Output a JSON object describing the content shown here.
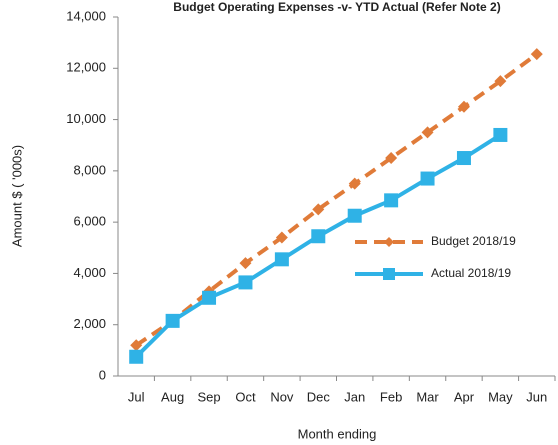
{
  "chart_data": {
    "type": "line",
    "title": "Budget Operating Expenses -v- YTD Actual (Refer Note 2)",
    "x_label": "Month ending",
    "y_label": "Amount $ ( '000s)",
    "categories": [
      "Jul",
      "Aug",
      "Sep",
      "Oct",
      "Nov",
      "Dec",
      "Jan",
      "Feb",
      "Mar",
      "Apr",
      "May",
      "Jun"
    ],
    "series": [
      {
        "name": "Budget 2018/19",
        "color": "#e07b39",
        "line_style": "dashed",
        "marker": "diamond",
        "values": [
          1200,
          2150,
          3300,
          4400,
          5400,
          6500,
          7500,
          8500,
          9500,
          10500,
          11500,
          12550
        ]
      },
      {
        "name": "Actual 2018/19",
        "color": "#2fb2e6",
        "line_style": "solid",
        "marker": "square",
        "values": [
          750,
          2150,
          3050,
          3650,
          4550,
          5450,
          6250,
          6850,
          7700,
          8500,
          9400,
          null
        ]
      }
    ],
    "ylim": [
      0,
      14000
    ],
    "yticks": [
      0,
      {
        "value": 2000,
        "label": "2,000"
      },
      {
        "value": 4000,
        "label": "4,000"
      },
      {
        "value": 6000,
        "label": "6,000"
      },
      {
        "value": 8000,
        "label": "8,000"
      },
      {
        "value": 10000,
        "label": "10,000"
      },
      {
        "value": 12000,
        "label": "12,000"
      },
      {
        "value": 14000,
        "label": "14,000"
      }
    ],
    "grid": false,
    "legend": "right"
  }
}
